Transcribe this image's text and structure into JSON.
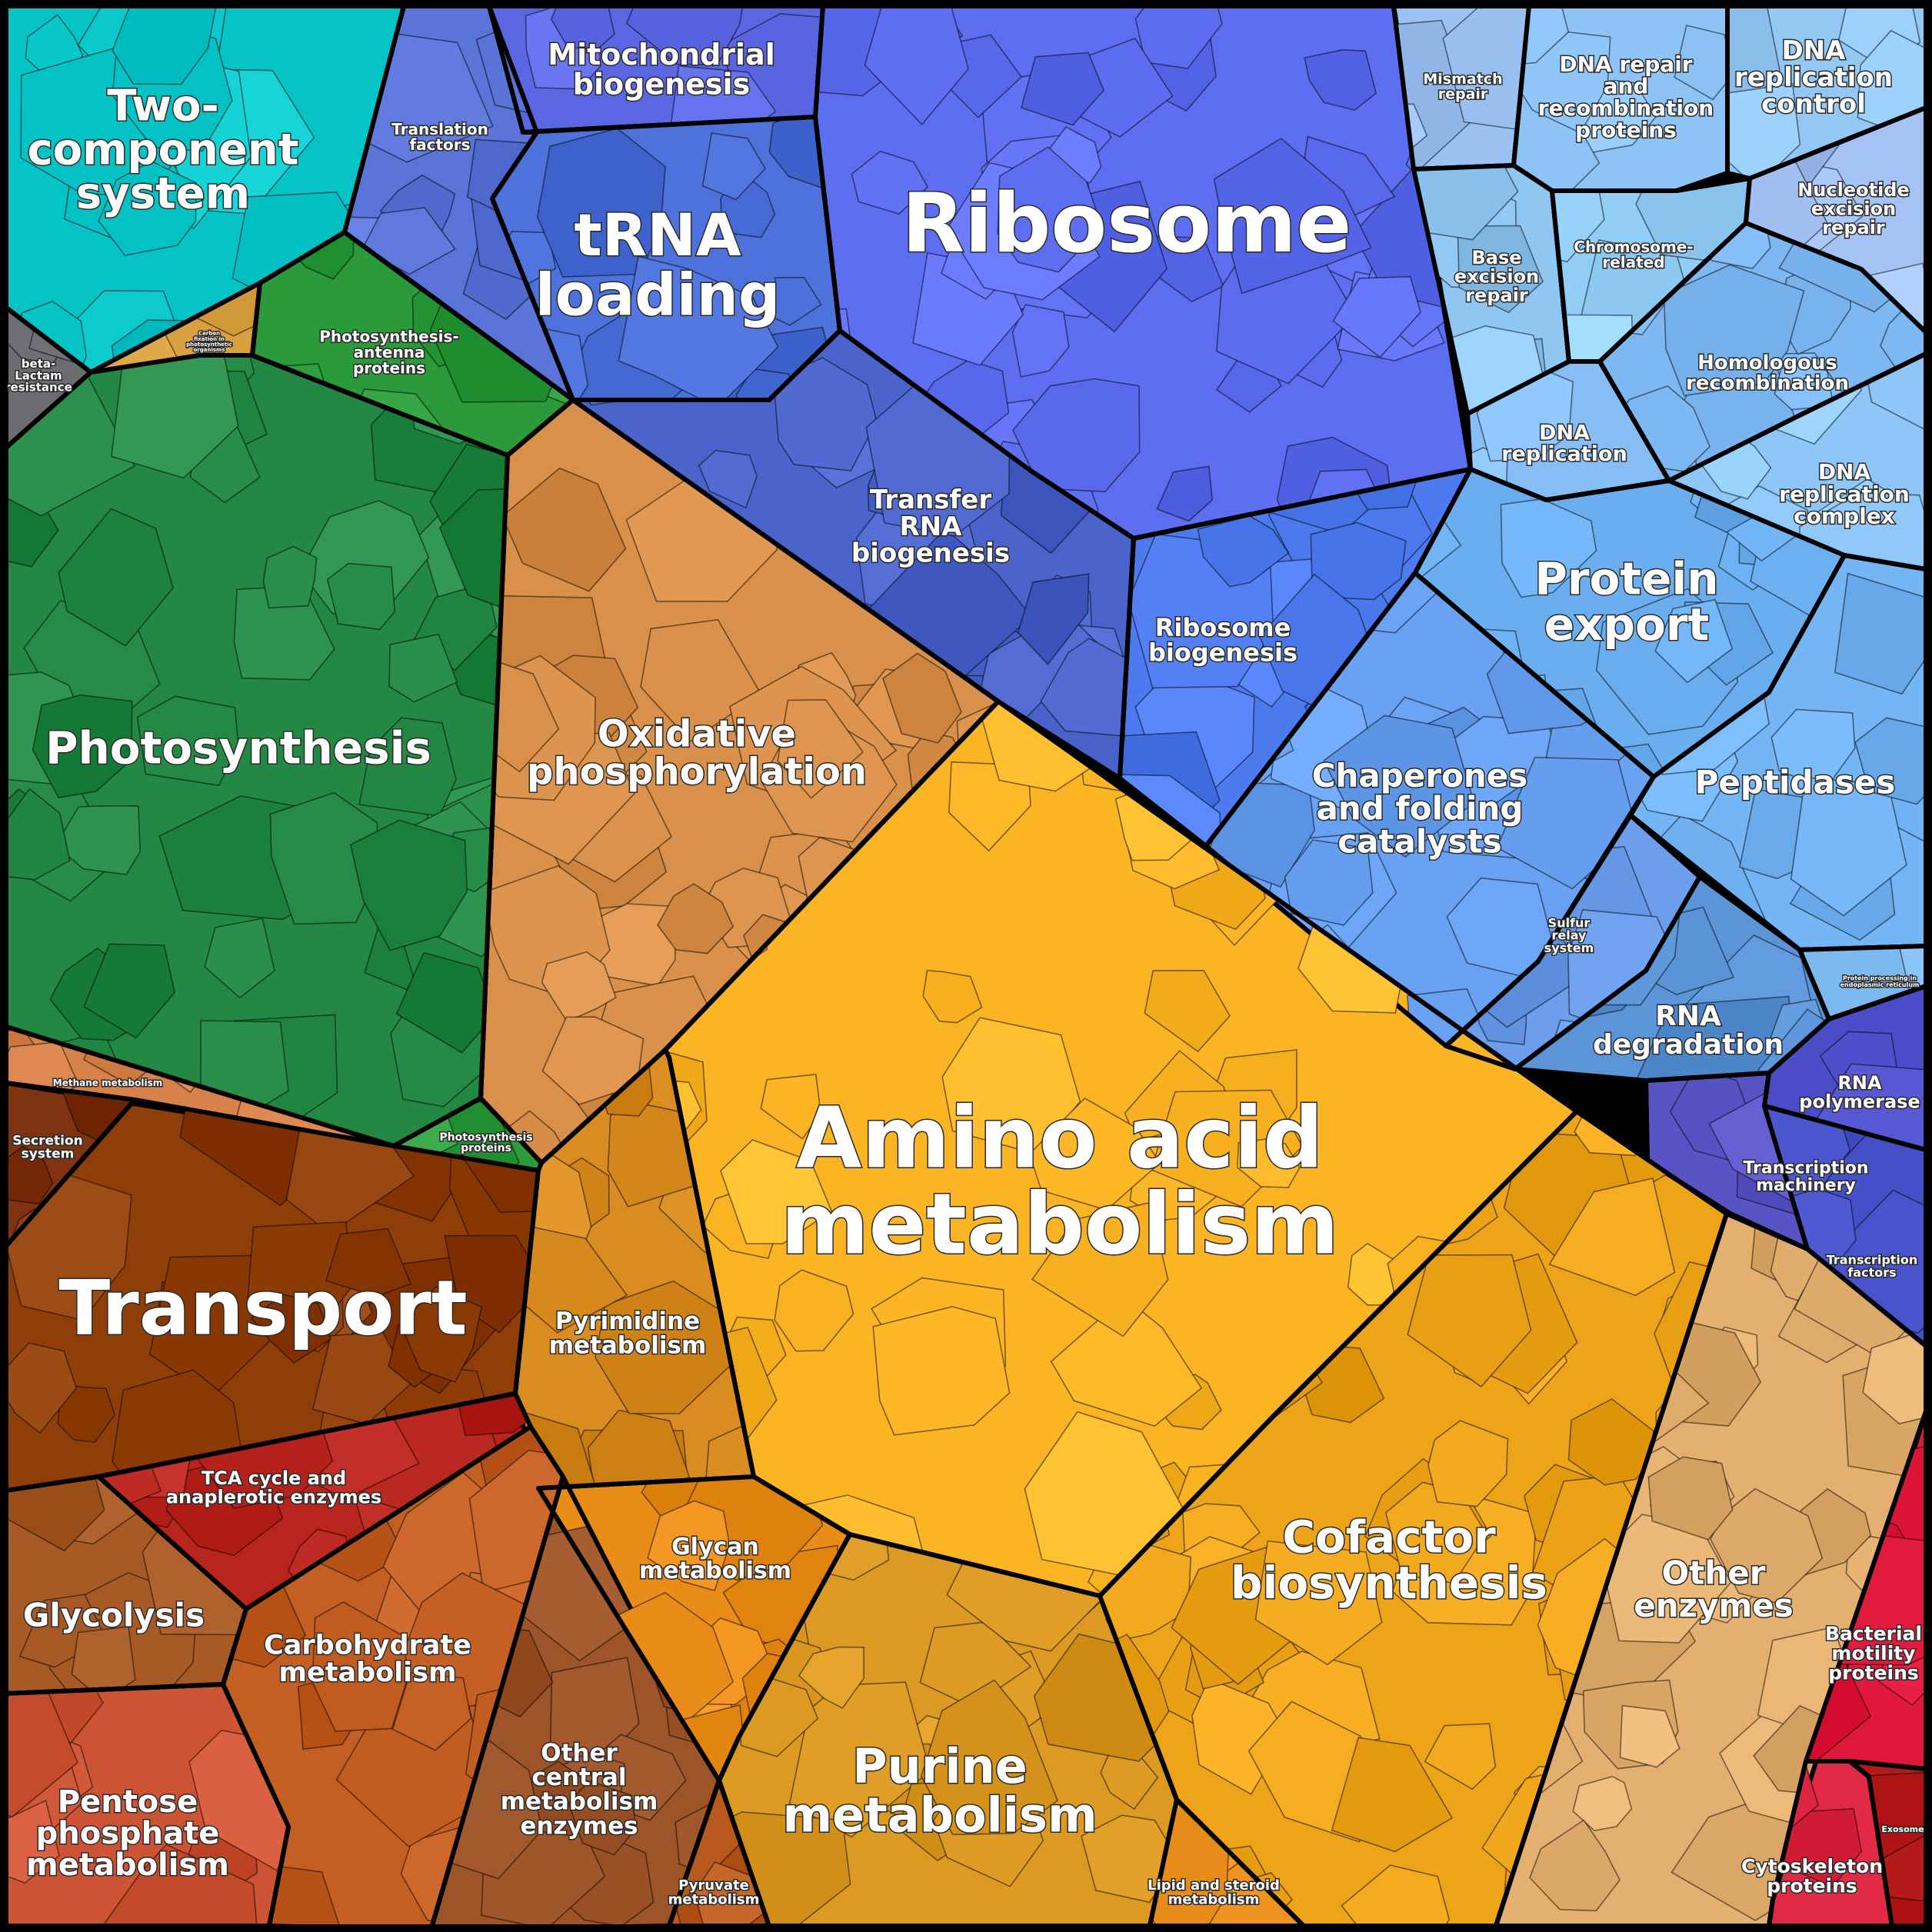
{
  "chart_data": {
    "type": "voronoi-treemap",
    "categories": [
      {
        "id": "two-component",
        "lines": [
          "Two-",
          "component",
          "system"
        ],
        "color": "#06c3c6"
      },
      {
        "id": "beta-lactam",
        "lines": [
          "beta-",
          "Lactam",
          "resistance"
        ],
        "color": "#6b6b70"
      },
      {
        "id": "carbon-fixation",
        "lines": [
          "Carbon",
          "fixation in",
          "photosynthetic",
          "organisms"
        ],
        "color": "#d9a040"
      },
      {
        "id": "translation-factors",
        "lines": [
          "Translation",
          "factors"
        ],
        "color": "#5a74d8"
      },
      {
        "id": "mitochondrial-biogenesis",
        "lines": [
          "Mitochondrial",
          "biogenesis"
        ],
        "color": "#5b66e2"
      },
      {
        "id": "trna-loading",
        "lines": [
          "tRNA",
          "loading"
        ],
        "color": "#4e72dc"
      },
      {
        "id": "ribosome",
        "lines": [
          "Ribosome"
        ],
        "color": "#5d6ef0"
      },
      {
        "id": "transfer-rna-biogenesis",
        "lines": [
          "Transfer",
          "RNA",
          "biogenesis"
        ],
        "color": "#4a64cc"
      },
      {
        "id": "ribosome-biogenesis",
        "lines": [
          "Ribosome",
          "biogenesis"
        ],
        "color": "#4e7af0"
      },
      {
        "id": "mismatch-repair",
        "lines": [
          "Mismatch",
          "repair"
        ],
        "color": "#9cc2f4"
      },
      {
        "id": "dna-repair-recombination",
        "lines": [
          "DNA repair",
          "and",
          "recombination",
          "proteins"
        ],
        "color": "#8ec3f6"
      },
      {
        "id": "dna-replication-control",
        "lines": [
          "DNA",
          "replication",
          "control"
        ],
        "color": "#93c7f4"
      },
      {
        "id": "base-excision-repair",
        "lines": [
          "Base",
          "excision",
          "repair"
        ],
        "color": "#8fc6f2"
      },
      {
        "id": "chromosome-related",
        "lines": [
          "Chromosome-",
          "related"
        ],
        "color": "#92cdf6"
      },
      {
        "id": "nucleotide-excision-repair",
        "lines": [
          "Nucleotide",
          "excision",
          "repair"
        ],
        "color": "#a4c2f4"
      },
      {
        "id": "homologous-recombination",
        "lines": [
          "Homologous",
          "recombination"
        ],
        "color": "#7eb8f2"
      },
      {
        "id": "dna-replication",
        "lines": [
          "DNA",
          "replication"
        ],
        "color": "#86bdf4"
      },
      {
        "id": "dna-replication-complex",
        "lines": [
          "DNA",
          "replication",
          "complex"
        ],
        "color": "#8ec6f8"
      },
      {
        "id": "protein-export",
        "lines": [
          "Protein",
          "export"
        ],
        "color": "#6aaef0"
      },
      {
        "id": "chaperones",
        "lines": [
          "Chaperones",
          "and folding",
          "catalysts"
        ],
        "color": "#69a2f2"
      },
      {
        "id": "peptidases",
        "lines": [
          "Peptidases"
        ],
        "color": "#74b5f6"
      },
      {
        "id": "sulfur-relay",
        "lines": [
          "Sulfur",
          "relay",
          "system"
        ],
        "color": "#6c9eec"
      },
      {
        "id": "protein-processing-er",
        "lines": [
          "Protein processing in",
          "endoplasmic reticulum"
        ],
        "color": "#7eb9f0"
      },
      {
        "id": "rna-degradation",
        "lines": [
          "RNA",
          "degradation"
        ],
        "color": "#5b95d8"
      },
      {
        "id": "rna-polymerase",
        "lines": [
          "RNA",
          "polymerase"
        ],
        "color": "#4a4cc8"
      },
      {
        "id": "transcription-machinery",
        "lines": [
          "Transcription",
          "machinery"
        ],
        "color": "#5954c6"
      },
      {
        "id": "transcription-factors",
        "lines": [
          "Transcription",
          "factors"
        ],
        "color": "#4550c8"
      },
      {
        "id": "photosynthesis-antenna",
        "lines": [
          "Photosynthesis-",
          "antenna",
          "proteins"
        ],
        "color": "#2a9a3a"
      },
      {
        "id": "photosynthesis",
        "lines": [
          "Photosynthesis"
        ],
        "color": "#238844"
      },
      {
        "id": "oxidative-phosphorylation",
        "lines": [
          "Oxidative",
          "phosphorylation"
        ],
        "color": "#d9904a"
      },
      {
        "id": "amino-acid-metabolism",
        "lines": [
          "Amino acid",
          "metabolism"
        ],
        "color": "#fbb424"
      },
      {
        "id": "methane-metabolism",
        "lines": [
          "Methane metabolism"
        ],
        "color": "#d6824a"
      },
      {
        "id": "photosynthesis-proteins",
        "lines": [
          "Photosynthesis",
          "proteins"
        ],
        "color": "#2e9a3e"
      },
      {
        "id": "secretion-system",
        "lines": [
          "Secretion",
          "system"
        ],
        "color": "#7f3310"
      },
      {
        "id": "transport",
        "lines": [
          "Transport"
        ],
        "color": "#8e3e06"
      },
      {
        "id": "pyrimidine-metabolism",
        "lines": [
          "Pyrimidine",
          "metabolism"
        ],
        "color": "#d98c20"
      },
      {
        "id": "tca-cycle",
        "lines": [
          "TCA cycle and",
          "anaplerotic enzymes"
        ],
        "color": "#b8241e"
      },
      {
        "id": "glycolysis",
        "lines": [
          "Glycolysis"
        ],
        "color": "#a85a26"
      },
      {
        "id": "carbohydrate-metabolism",
        "lines": [
          "Carbohydrate",
          "metabolism"
        ],
        "color": "#c45f24"
      },
      {
        "id": "pentose-phosphate",
        "lines": [
          "Pentose",
          "phosphate",
          "metabolism"
        ],
        "color": "#cc5434"
      },
      {
        "id": "other-central-metabolism",
        "lines": [
          "Other",
          "central",
          "metabolism",
          "enzymes"
        ],
        "color": "#9c5428"
      },
      {
        "id": "pyruvate-metabolism",
        "lines": [
          "Pyruvate",
          "metabolism"
        ],
        "color": "#b85a1e"
      },
      {
        "id": "glycan-metabolism",
        "lines": [
          "Glycan",
          "metabolism"
        ],
        "color": "#ea8c18"
      },
      {
        "id": "purine-metabolism",
        "lines": [
          "Purine",
          "metabolism"
        ],
        "color": "#dc9a22"
      },
      {
        "id": "lipid-steroid-metabolism",
        "lines": [
          "Lipid and steroid",
          "metabolism"
        ],
        "color": "#ef9420"
      },
      {
        "id": "cofactor-biosynthesis",
        "lines": [
          "Cofactor",
          "biosynthesis"
        ],
        "color": "#eea418"
      },
      {
        "id": "other-enzymes",
        "lines": [
          "Other",
          "enzymes"
        ],
        "color": "#e4b070"
      },
      {
        "id": "bacterial-motility",
        "lines": [
          "Bacterial",
          "motility",
          "proteins"
        ],
        "color": "#e0183c"
      },
      {
        "id": "cytoskeleton-proteins",
        "lines": [
          "Cytoskeleton",
          "proteins"
        ],
        "color": "#e02a46"
      },
      {
        "id": "exosome",
        "lines": [
          "Exosome"
        ],
        "color": "#b41a1a"
      }
    ]
  }
}
